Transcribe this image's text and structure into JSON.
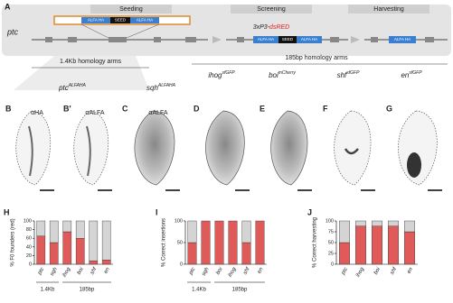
{
  "panel_a": {
    "letter": "A",
    "gene": "ptc",
    "stages": [
      "Seeding",
      "Screening",
      "Harvesting"
    ],
    "seeding_construct": [
      "ALFA HA",
      "SEED",
      "ALFA HA"
    ],
    "marker_prefix": "3xP3-",
    "marker_red": "dsRED",
    "screening_construct": [
      "ALFA HA",
      "SEED",
      "ALFA HA"
    ],
    "harvesting_construct": [
      "ALFA HA"
    ]
  },
  "arm_groups": [
    "1.4Kb homology arms",
    "185bp homology arms"
  ],
  "genotypes": [
    {
      "gene": "ptc",
      "allele": "ALFAHA"
    },
    {
      "gene": "sqh",
      "allele": "ALFAHA"
    },
    {
      "gene": "ihog",
      "allele": "sfGFP"
    },
    {
      "gene": "boi",
      "allele": "mCherry"
    },
    {
      "gene": "shf",
      "allele": "sfGFP"
    },
    {
      "gene": "en",
      "allele": "sfGFP"
    }
  ],
  "panels": [
    {
      "letter": "B",
      "antibody": "αHA"
    },
    {
      "letter": "B'",
      "antibody": "αALFA"
    },
    {
      "letter": "C",
      "antibody": "αALFA"
    },
    {
      "letter": "D"
    },
    {
      "letter": "E"
    },
    {
      "letter": "F"
    },
    {
      "letter": "G"
    }
  ],
  "chart_data": [
    {
      "type": "stacked-bar",
      "panel": "H",
      "ylabel": "% F0 founders (red)",
      "categories": [
        "ptc",
        "sqh",
        "ihog",
        "boi",
        "shf",
        "en"
      ],
      "series": [
        {
          "color": "#e05a5a",
          "values": [
            65,
            50,
            75,
            60,
            8,
            10
          ]
        },
        {
          "color": "#d4d4d4",
          "values": [
            35,
            50,
            25,
            40,
            92,
            90
          ]
        }
      ],
      "ylim": [
        0,
        100
      ],
      "yticks": [
        0,
        20,
        40,
        60,
        80,
        100
      ],
      "groups": [
        "1.4Kb",
        "185bp"
      ]
    },
    {
      "type": "stacked-bar",
      "panel": "I",
      "ylabel": "% Correct insertions",
      "categories": [
        "ptc",
        "sqh",
        "boi",
        "ihog",
        "shf",
        "en"
      ],
      "series": [
        {
          "color": "#e05a5a",
          "values": [
            50,
            100,
            100,
            100,
            50,
            100
          ]
        },
        {
          "color": "#d4d4d4",
          "values": [
            50,
            0,
            0,
            0,
            50,
            0
          ]
        }
      ],
      "ylim": [
        0,
        100
      ],
      "yticks": [
        0,
        50,
        100
      ],
      "groups": [
        "1.4Kb",
        "185bp"
      ]
    },
    {
      "type": "stacked-bar",
      "panel": "J",
      "ylabel": "% Correct harvesting",
      "categories": [
        "ptc",
        "ihog",
        "boi",
        "shf",
        "en"
      ],
      "series": [
        {
          "color": "#e05a5a",
          "values": [
            50,
            88,
            88,
            88,
            75
          ]
        },
        {
          "color": "#d4d4d4",
          "values": [
            50,
            12,
            12,
            12,
            25
          ]
        }
      ],
      "ylim": [
        0,
        100
      ],
      "yticks": [
        0,
        25,
        50,
        75,
        100
      ]
    }
  ]
}
